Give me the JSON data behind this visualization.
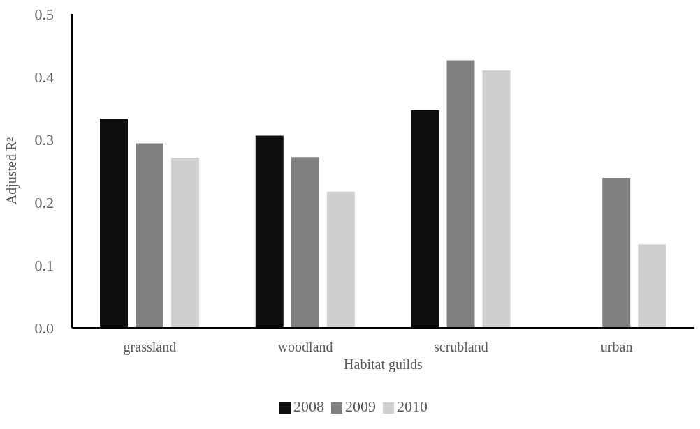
{
  "chart_data": {
    "type": "bar",
    "xlabel": "Habitat guilds",
    "ylabel": "Adjusted R²",
    "categories": [
      "grassland",
      "woodland",
      "scrubland",
      "urban"
    ],
    "series": [
      {
        "name": "2008",
        "color": "#0e0e0e",
        "values": [
          0.333,
          0.306,
          0.347,
          null
        ]
      },
      {
        "name": "2009",
        "color": "#808080",
        "values": [
          0.294,
          0.272,
          0.426,
          0.239
        ]
      },
      {
        "name": "2010",
        "color": "#d0cfd0",
        "values": [
          0.271,
          0.217,
          0.41,
          0.133
        ]
      }
    ],
    "ylim": [
      0,
      0.5
    ],
    "yticks": [
      {
        "value": 0,
        "label": "0.0"
      },
      {
        "value": 0.1,
        "label": "0.1"
      },
      {
        "value": 0.2,
        "label": "0.2"
      },
      {
        "value": 0.3,
        "label": "0.3"
      },
      {
        "value": 0.4,
        "label": "0.4"
      },
      {
        "value": 0.5,
        "label": "0.5"
      }
    ],
    "grid": false,
    "legend": "bottom"
  }
}
